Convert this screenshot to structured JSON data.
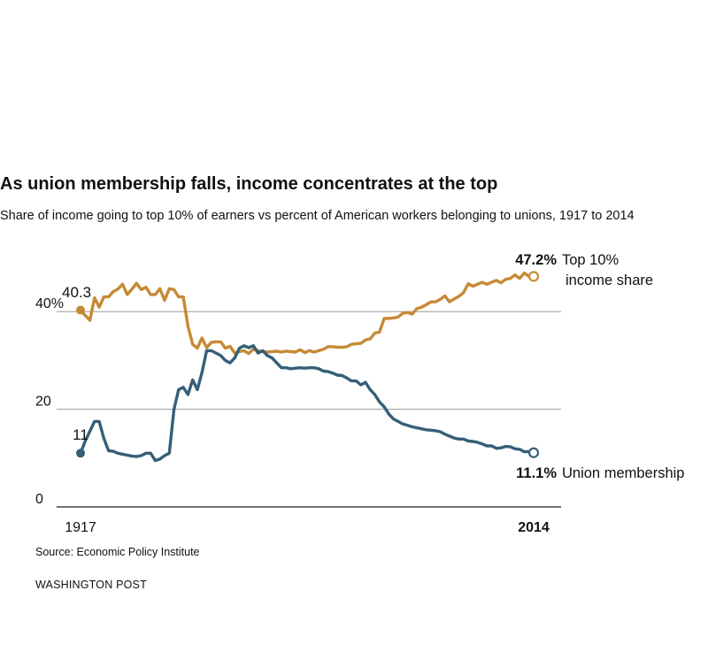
{
  "title": "As union membership falls, income concentrates at the top",
  "subtitle": "Share of income going to top 10% of earners vs percent of American workers belonging to unions, 1917 to 2014",
  "source": "Source: Economic Policy Institute",
  "brand": "WASHINGTON POST",
  "chart_data": {
    "type": "line",
    "xlim": [
      1917,
      2014
    ],
    "ylim": [
      0,
      47
    ],
    "grid": true,
    "x_tick_labels": [
      {
        "x": 1917,
        "label": "1917",
        "bold": false
      },
      {
        "x": 2014,
        "label": "2014",
        "bold": true
      }
    ],
    "y_tick_labels": [
      {
        "y": 40,
        "label": "40%"
      },
      {
        "y": 20,
        "label": "20"
      },
      {
        "y": 0,
        "label": "0"
      }
    ],
    "colors": {
      "income": "#c68a35",
      "union": "#355f78",
      "grid": "#9a9a9a",
      "axis": "#444444"
    },
    "series": [
      {
        "key": "income",
        "start_label": "40.3",
        "end_value_label": "47.2%",
        "end_name_lines": [
          "Top 10%",
          "income share"
        ],
        "points": [
          [
            1917,
            40.3
          ],
          [
            1918,
            39.2
          ],
          [
            1919,
            38.2
          ],
          [
            1920,
            42.8
          ],
          [
            1921,
            40.9
          ],
          [
            1922,
            43.0
          ],
          [
            1923,
            43.0
          ],
          [
            1924,
            44.1
          ],
          [
            1925,
            44.6
          ],
          [
            1926,
            45.6
          ],
          [
            1927,
            43.5
          ],
          [
            1928,
            44.6
          ],
          [
            1929,
            45.8
          ],
          [
            1930,
            44.5
          ],
          [
            1931,
            45.0
          ],
          [
            1932,
            43.5
          ],
          [
            1933,
            43.5
          ],
          [
            1934,
            44.7
          ],
          [
            1935,
            42.3
          ],
          [
            1936,
            44.7
          ],
          [
            1937,
            44.5
          ],
          [
            1938,
            43.0
          ],
          [
            1939,
            43.0
          ],
          [
            1940,
            37.0
          ],
          [
            1941,
            33.3
          ],
          [
            1942,
            32.5
          ],
          [
            1943,
            34.6
          ],
          [
            1944,
            32.6
          ],
          [
            1945,
            33.7
          ],
          [
            1946,
            33.8
          ],
          [
            1947,
            33.8
          ],
          [
            1948,
            32.5
          ],
          [
            1949,
            32.9
          ],
          [
            1950,
            31.5
          ],
          [
            1951,
            31.8
          ],
          [
            1952,
            32.0
          ],
          [
            1953,
            31.4
          ],
          [
            1954,
            32.3
          ],
          [
            1955,
            32.0
          ],
          [
            1956,
            31.8
          ],
          [
            1957,
            31.7
          ],
          [
            1958,
            31.8
          ],
          [
            1959,
            31.9
          ],
          [
            1960,
            31.7
          ],
          [
            1961,
            31.9
          ],
          [
            1962,
            31.8
          ],
          [
            1963,
            31.7
          ],
          [
            1964,
            32.2
          ],
          [
            1965,
            31.6
          ],
          [
            1966,
            32.0
          ],
          [
            1967,
            31.7
          ],
          [
            1968,
            32.0
          ],
          [
            1969,
            32.3
          ],
          [
            1970,
            32.8
          ],
          [
            1971,
            32.8
          ],
          [
            1972,
            32.7
          ],
          [
            1973,
            32.7
          ],
          [
            1974,
            32.8
          ],
          [
            1975,
            33.3
          ],
          [
            1976,
            33.4
          ],
          [
            1977,
            33.5
          ],
          [
            1978,
            34.2
          ],
          [
            1979,
            34.4
          ],
          [
            1980,
            35.6
          ],
          [
            1981,
            35.8
          ],
          [
            1982,
            38.6
          ],
          [
            1983,
            38.6
          ],
          [
            1984,
            38.7
          ],
          [
            1985,
            38.9
          ],
          [
            1986,
            39.7
          ],
          [
            1987,
            39.8
          ],
          [
            1988,
            39.5
          ],
          [
            1989,
            40.6
          ],
          [
            1990,
            40.9
          ],
          [
            1991,
            41.4
          ],
          [
            1992,
            42.0
          ],
          [
            1993,
            42.0
          ],
          [
            1994,
            42.5
          ],
          [
            1995,
            43.2
          ],
          [
            1996,
            42.0
          ],
          [
            1997,
            42.6
          ],
          [
            1998,
            43.1
          ],
          [
            1999,
            43.9
          ],
          [
            2000,
            45.7
          ],
          [
            2001,
            45.2
          ],
          [
            2002,
            45.6
          ],
          [
            2003,
            46.0
          ],
          [
            2004,
            45.6
          ],
          [
            2005,
            46.0
          ],
          [
            2006,
            46.4
          ],
          [
            2007,
            45.9
          ],
          [
            2008,
            46.6
          ],
          [
            2009,
            46.8
          ],
          [
            2010,
            47.5
          ],
          [
            2011,
            46.8
          ],
          [
            2012,
            47.9
          ],
          [
            2013,
            47.2
          ],
          [
            2014,
            47.2
          ]
        ]
      },
      {
        "key": "union",
        "start_label": "11",
        "end_value_label": "11.1%",
        "end_name_lines": [
          "Union membership"
        ],
        "points": [
          [
            1917,
            11.0
          ],
          [
            1918,
            13.5
          ],
          [
            1919,
            15.5
          ],
          [
            1920,
            17.5
          ],
          [
            1921,
            17.5
          ],
          [
            1922,
            14.0
          ],
          [
            1923,
            11.5
          ],
          [
            1924,
            11.4
          ],
          [
            1925,
            11.0
          ],
          [
            1926,
            10.8
          ],
          [
            1927,
            10.6
          ],
          [
            1928,
            10.4
          ],
          [
            1929,
            10.3
          ],
          [
            1930,
            10.5
          ],
          [
            1931,
            11.0
          ],
          [
            1932,
            11.0
          ],
          [
            1933,
            9.5
          ],
          [
            1934,
            9.8
          ],
          [
            1935,
            10.5
          ],
          [
            1936,
            11.0
          ],
          [
            1937,
            20.0
          ],
          [
            1938,
            24.0
          ],
          [
            1939,
            24.5
          ],
          [
            1940,
            23.0
          ],
          [
            1941,
            26.0
          ],
          [
            1942,
            24.0
          ],
          [
            1943,
            27.5
          ],
          [
            1944,
            32.0
          ],
          [
            1945,
            32.0
          ],
          [
            1946,
            31.5
          ],
          [
            1947,
            31.0
          ],
          [
            1948,
            30.0
          ],
          [
            1949,
            29.5
          ],
          [
            1950,
            30.5
          ],
          [
            1951,
            32.5
          ],
          [
            1952,
            33.0
          ],
          [
            1953,
            32.6
          ],
          [
            1954,
            33.0
          ],
          [
            1955,
            31.5
          ],
          [
            1956,
            32.0
          ],
          [
            1957,
            31.0
          ],
          [
            1958,
            30.5
          ],
          [
            1959,
            29.5
          ],
          [
            1960,
            28.5
          ],
          [
            1961,
            28.5
          ],
          [
            1962,
            28.3
          ],
          [
            1963,
            28.4
          ],
          [
            1964,
            28.5
          ],
          [
            1965,
            28.4
          ],
          [
            1966,
            28.5
          ],
          [
            1967,
            28.5
          ],
          [
            1968,
            28.3
          ],
          [
            1969,
            27.8
          ],
          [
            1970,
            27.7
          ],
          [
            1971,
            27.4
          ],
          [
            1972,
            27.0
          ],
          [
            1973,
            26.9
          ],
          [
            1974,
            26.4
          ],
          [
            1975,
            25.8
          ],
          [
            1976,
            25.8
          ],
          [
            1977,
            25.0
          ],
          [
            1978,
            25.5
          ],
          [
            1979,
            24.0
          ],
          [
            1980,
            23.0
          ],
          [
            1981,
            21.5
          ],
          [
            1982,
            20.5
          ],
          [
            1983,
            19.0
          ],
          [
            1984,
            18.0
          ],
          [
            1985,
            17.5
          ],
          [
            1986,
            17.0
          ],
          [
            1987,
            16.7
          ],
          [
            1988,
            16.4
          ],
          [
            1989,
            16.2
          ],
          [
            1990,
            16.0
          ],
          [
            1991,
            15.8
          ],
          [
            1992,
            15.7
          ],
          [
            1993,
            15.6
          ],
          [
            1994,
            15.4
          ],
          [
            1995,
            14.9
          ],
          [
            1996,
            14.5
          ],
          [
            1997,
            14.1
          ],
          [
            1998,
            13.9
          ],
          [
            1999,
            13.9
          ],
          [
            2000,
            13.5
          ],
          [
            2001,
            13.4
          ],
          [
            2002,
            13.2
          ],
          [
            2003,
            12.9
          ],
          [
            2004,
            12.5
          ],
          [
            2005,
            12.5
          ],
          [
            2006,
            12.0
          ],
          [
            2007,
            12.1
          ],
          [
            2008,
            12.4
          ],
          [
            2009,
            12.3
          ],
          [
            2010,
            11.9
          ],
          [
            2011,
            11.8
          ],
          [
            2012,
            11.3
          ],
          [
            2013,
            11.3
          ],
          [
            2014,
            11.1
          ]
        ]
      }
    ]
  }
}
